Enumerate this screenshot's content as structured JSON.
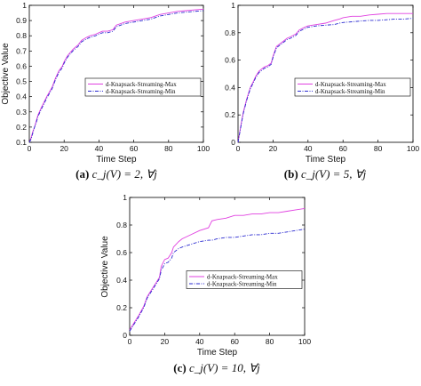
{
  "chart_data": [
    {
      "type": "line",
      "caption_letter": "(a)",
      "caption_formula": "c_j(V) = 2, ∀j",
      "xlabel": "Time Step",
      "ylabel": "Objective Value",
      "xlim": [
        0,
        100
      ],
      "ylim": [
        0.1,
        1.0
      ],
      "xticks": [
        0,
        20,
        40,
        60,
        80,
        100
      ],
      "yticks": [
        0.1,
        0.2,
        0.3,
        0.4,
        0.5,
        0.6,
        0.7,
        0.8,
        0.9,
        1.0
      ],
      "grid": false,
      "legend_position": "center-right",
      "series": [
        {
          "name": "d-Knapsack-Streaming-Max",
          "color": "#e040e0",
          "style": "solid",
          "x": [
            0,
            1,
            2,
            3,
            4,
            5,
            7,
            10,
            13,
            15,
            17,
            19,
            20,
            22,
            25,
            28,
            30,
            33,
            35,
            38,
            40,
            42,
            45,
            48,
            50,
            55,
            60,
            65,
            70,
            75,
            80,
            85,
            90,
            95,
            100
          ],
          "y": [
            0.1,
            0.13,
            0.17,
            0.2,
            0.24,
            0.28,
            0.33,
            0.4,
            0.46,
            0.52,
            0.57,
            0.6,
            0.63,
            0.67,
            0.71,
            0.74,
            0.77,
            0.79,
            0.8,
            0.81,
            0.82,
            0.83,
            0.83,
            0.84,
            0.87,
            0.89,
            0.9,
            0.91,
            0.92,
            0.94,
            0.95,
            0.96,
            0.965,
            0.97,
            0.975
          ]
        },
        {
          "name": "d-Knapsack-Streaming-Min",
          "color": "#2a2ad0",
          "style": "dashdot",
          "x": [
            0,
            1,
            2,
            3,
            4,
            5,
            7,
            10,
            13,
            15,
            17,
            19,
            20,
            22,
            25,
            28,
            30,
            33,
            35,
            38,
            40,
            42,
            45,
            48,
            50,
            55,
            60,
            65,
            70,
            75,
            80,
            85,
            90,
            95,
            100
          ],
          "y": [
            0.1,
            0.12,
            0.16,
            0.2,
            0.23,
            0.27,
            0.32,
            0.39,
            0.45,
            0.51,
            0.56,
            0.59,
            0.62,
            0.66,
            0.7,
            0.73,
            0.76,
            0.78,
            0.79,
            0.8,
            0.81,
            0.82,
            0.82,
            0.83,
            0.86,
            0.88,
            0.89,
            0.9,
            0.91,
            0.93,
            0.94,
            0.95,
            0.955,
            0.96,
            0.965
          ]
        }
      ]
    },
    {
      "type": "line",
      "caption_letter": "(b)",
      "caption_formula": "c_j(V) = 5, ∀j",
      "xlabel": "Time Step",
      "ylabel": "",
      "xlim": [
        0,
        100
      ],
      "ylim": [
        0,
        1.0
      ],
      "xticks": [
        0,
        20,
        40,
        60,
        80,
        100
      ],
      "yticks": [
        0,
        0.2,
        0.4,
        0.6,
        0.8,
        1.0
      ],
      "grid": false,
      "legend_position": "center-right",
      "series": [
        {
          "name": "d-Knapsack-Streaming-Max",
          "color": "#e040e0",
          "style": "solid",
          "x": [
            0,
            1,
            2,
            3,
            5,
            7,
            9,
            10,
            12,
            15,
            17,
            19,
            20,
            22,
            25,
            28,
            30,
            33,
            35,
            38,
            40,
            45,
            50,
            55,
            58,
            60,
            65,
            70,
            75,
            80,
            85,
            90,
            95,
            100
          ],
          "y": [
            0.0,
            0.08,
            0.15,
            0.22,
            0.32,
            0.4,
            0.45,
            0.48,
            0.52,
            0.55,
            0.56,
            0.58,
            0.63,
            0.7,
            0.73,
            0.76,
            0.77,
            0.79,
            0.82,
            0.84,
            0.85,
            0.86,
            0.87,
            0.89,
            0.9,
            0.91,
            0.92,
            0.92,
            0.93,
            0.935,
            0.94,
            0.94,
            0.94,
            0.94
          ]
        },
        {
          "name": "d-Knapsack-Streaming-Min",
          "color": "#2a2ad0",
          "style": "dashdot",
          "x": [
            0,
            1,
            2,
            3,
            5,
            7,
            9,
            10,
            12,
            15,
            17,
            19,
            20,
            22,
            25,
            28,
            30,
            33,
            35,
            38,
            40,
            45,
            50,
            55,
            58,
            60,
            65,
            70,
            75,
            80,
            85,
            90,
            95,
            100
          ],
          "y": [
            0.0,
            0.07,
            0.14,
            0.21,
            0.31,
            0.39,
            0.44,
            0.47,
            0.51,
            0.54,
            0.55,
            0.57,
            0.62,
            0.69,
            0.72,
            0.75,
            0.76,
            0.78,
            0.81,
            0.83,
            0.84,
            0.85,
            0.855,
            0.86,
            0.87,
            0.875,
            0.88,
            0.885,
            0.89,
            0.89,
            0.895,
            0.9,
            0.9,
            0.905
          ]
        }
      ]
    },
    {
      "type": "line",
      "caption_letter": "(c)",
      "caption_formula": "c_j(V) = 10, ∀j",
      "xlabel": "Time Step",
      "ylabel": "Objective Value",
      "xlim": [
        0,
        100
      ],
      "ylim": [
        0,
        1.0
      ],
      "xticks": [
        0,
        20,
        40,
        60,
        80,
        100
      ],
      "yticks": [
        0,
        0.2,
        0.4,
        0.6,
        0.8,
        1.0
      ],
      "grid": false,
      "legend_position": "center-right",
      "series": [
        {
          "name": "d-Knapsack-Streaming-Max",
          "color": "#e040e0",
          "style": "solid",
          "x": [
            0,
            2,
            5,
            8,
            10,
            13,
            15,
            17,
            18,
            20,
            22,
            24,
            25,
            28,
            30,
            35,
            40,
            45,
            47,
            50,
            55,
            60,
            65,
            70,
            75,
            80,
            85,
            90,
            95,
            100
          ],
          "y": [
            0.04,
            0.08,
            0.14,
            0.21,
            0.28,
            0.34,
            0.38,
            0.42,
            0.5,
            0.55,
            0.56,
            0.6,
            0.64,
            0.68,
            0.7,
            0.73,
            0.76,
            0.78,
            0.83,
            0.84,
            0.85,
            0.87,
            0.87,
            0.88,
            0.88,
            0.89,
            0.89,
            0.9,
            0.91,
            0.92
          ]
        },
        {
          "name": "d-Knapsack-Streaming-Min",
          "color": "#2a2ad0",
          "style": "dashdot",
          "x": [
            0,
            2,
            5,
            8,
            10,
            13,
            15,
            17,
            18,
            20,
            22,
            24,
            25,
            28,
            30,
            35,
            40,
            45,
            47,
            50,
            55,
            60,
            65,
            70,
            75,
            80,
            85,
            90,
            95,
            100
          ],
          "y": [
            0.03,
            0.07,
            0.13,
            0.2,
            0.27,
            0.33,
            0.37,
            0.41,
            0.47,
            0.52,
            0.53,
            0.56,
            0.6,
            0.63,
            0.64,
            0.66,
            0.68,
            0.69,
            0.69,
            0.7,
            0.71,
            0.71,
            0.72,
            0.73,
            0.73,
            0.74,
            0.74,
            0.75,
            0.76,
            0.77
          ]
        }
      ]
    }
  ]
}
